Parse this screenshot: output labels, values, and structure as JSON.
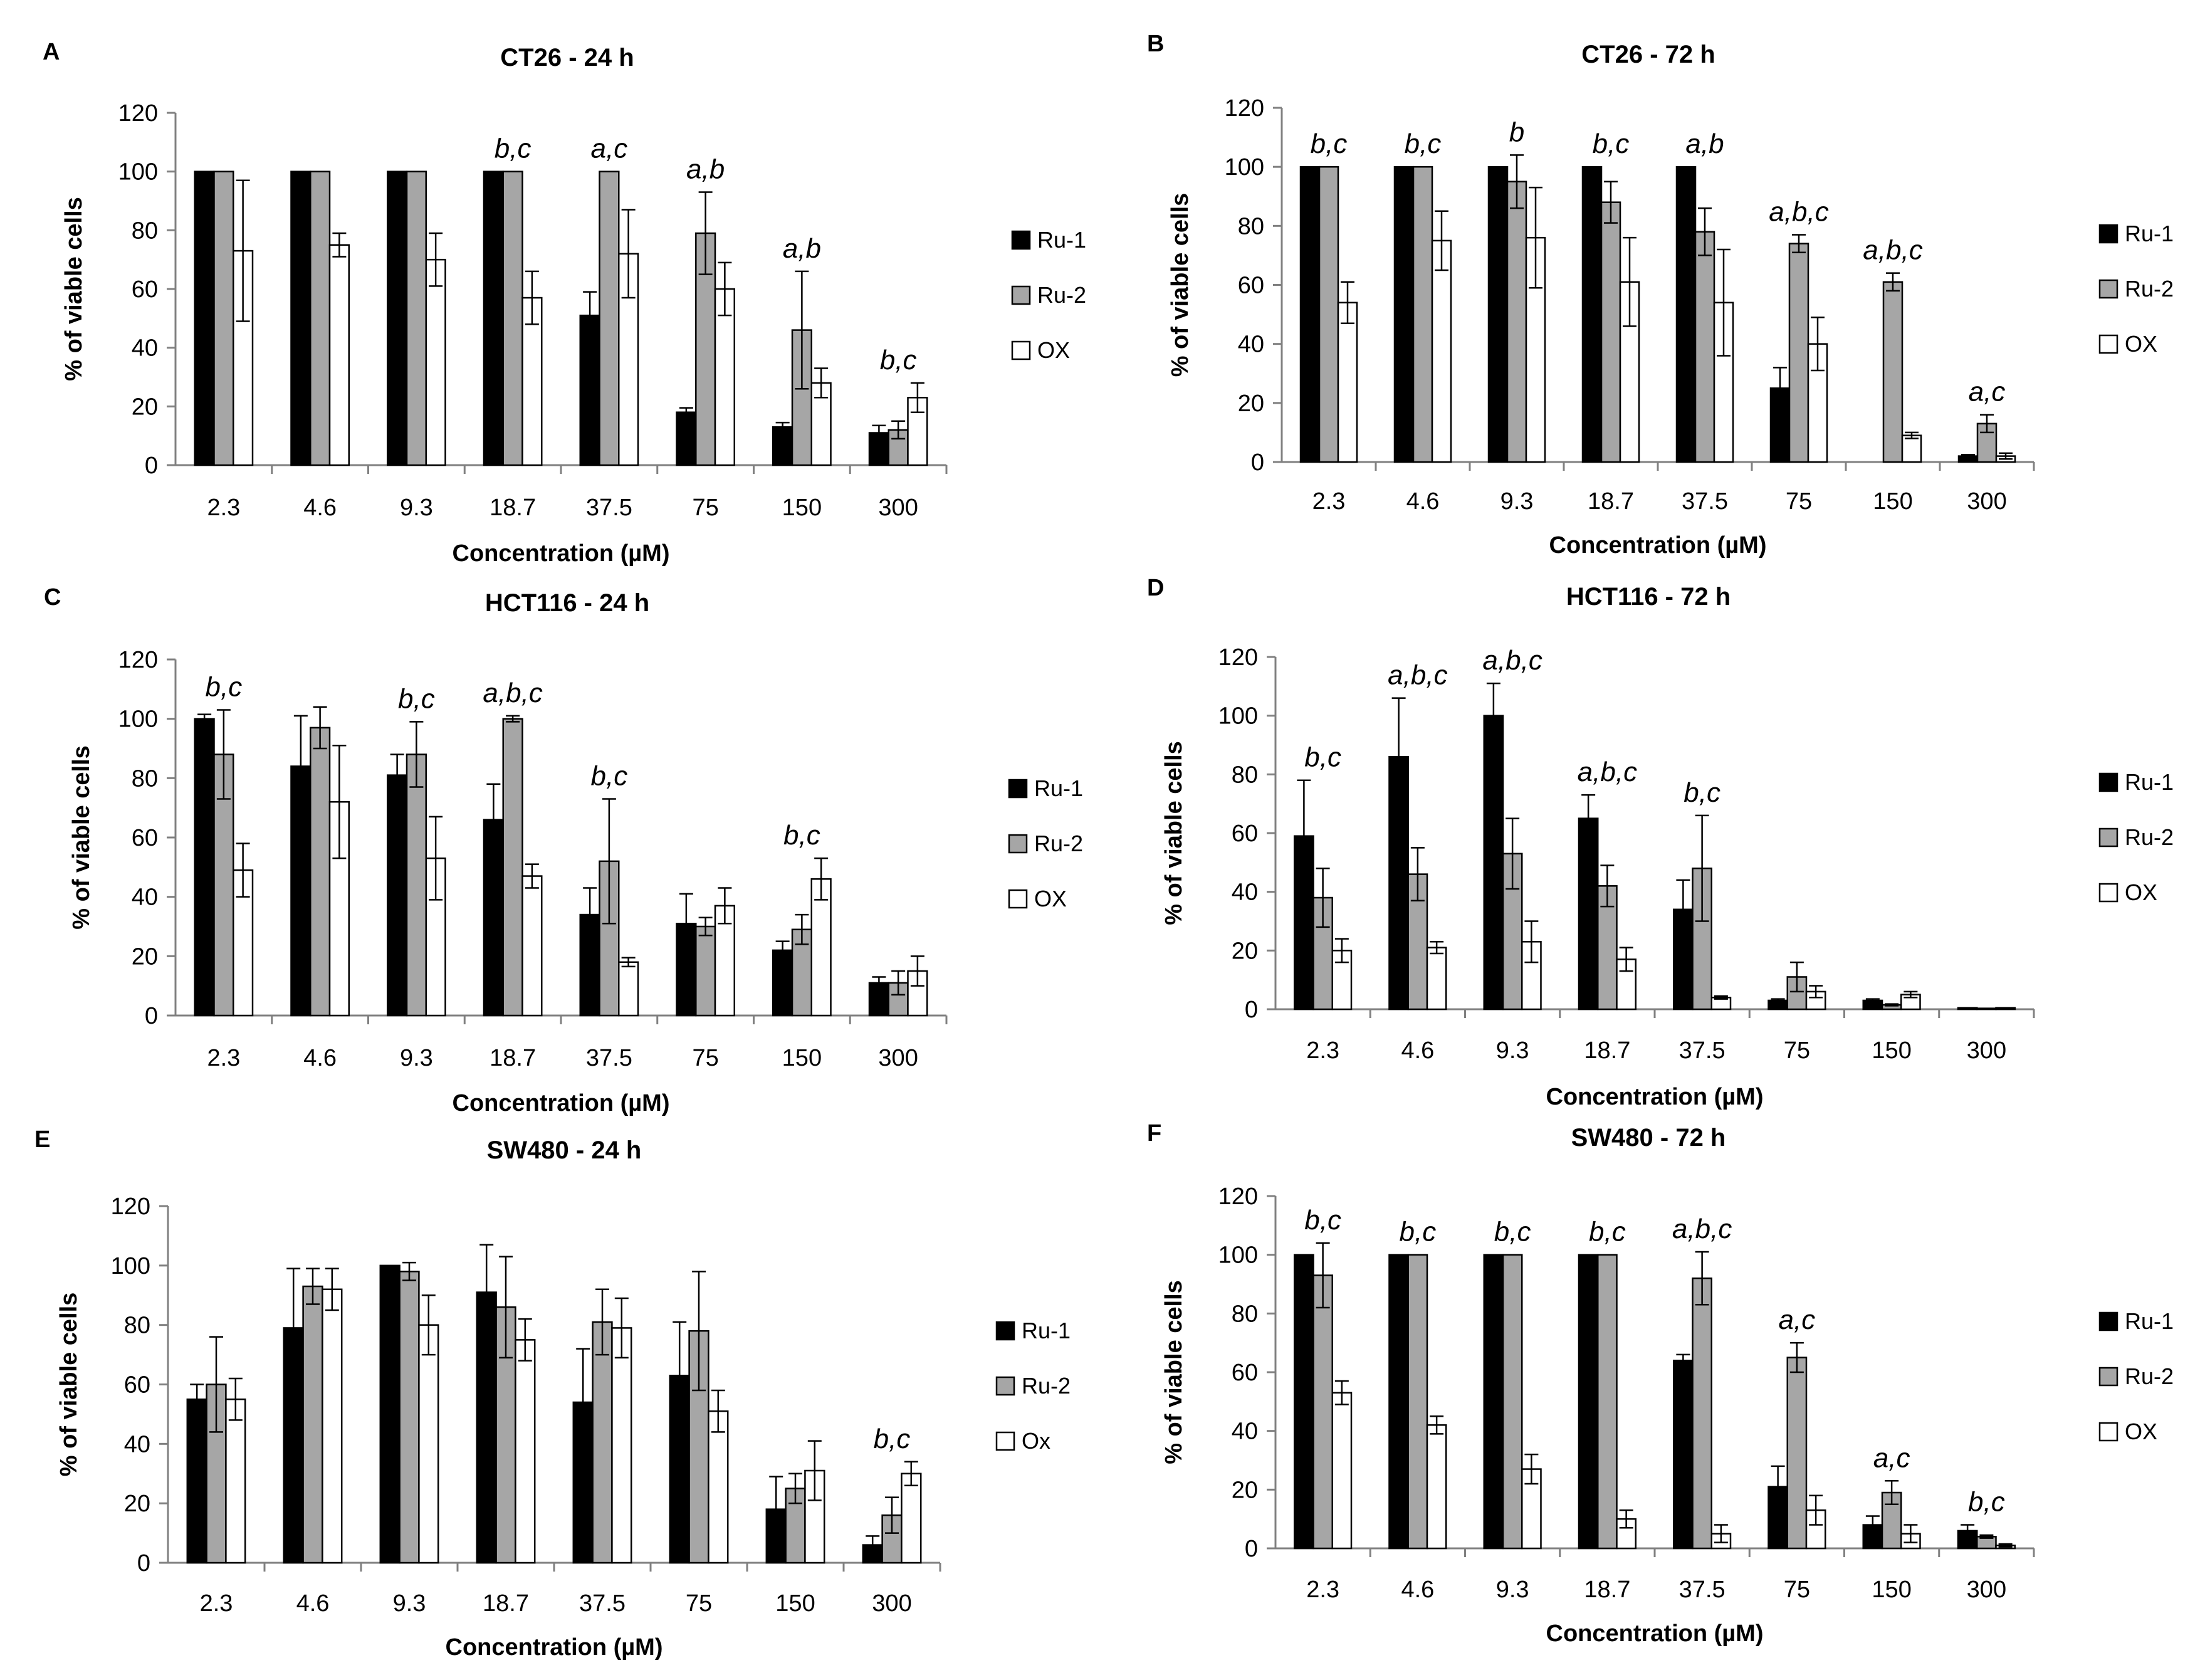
{
  "figure": {
    "series_styles": [
      {
        "name": "Ru-1",
        "fill": "#000000"
      },
      {
        "name": "Ru-2",
        "fill": "#a6a6a6"
      },
      {
        "name": "OX",
        "fill": "#ffffff"
      }
    ]
  },
  "chart_data": [
    {
      "type": "bar",
      "panel": "A",
      "title": "CT26 - 24 h",
      "xlabel": "Concentration (µM)",
      "ylabel": "% of viable cells",
      "ylim": [
        0,
        120
      ],
      "yticks": [
        0,
        20,
        40,
        60,
        80,
        100,
        120
      ],
      "categories": [
        "2.3",
        "4.6",
        "9.3",
        "18.7",
        "37.5",
        "75",
        "150",
        "300"
      ],
      "legend": [
        "Ru-1",
        "Ru-2",
        "OX"
      ],
      "series": [
        {
          "name": "Ru-1",
          "values": [
            100,
            100,
            100,
            100,
            51,
            18,
            13,
            11
          ],
          "errors": [
            0,
            0,
            0,
            0,
            8,
            1.5,
            1.5,
            2.5
          ]
        },
        {
          "name": "Ru-2",
          "values": [
            100,
            100,
            100,
            100,
            100,
            79,
            46,
            12
          ],
          "errors": [
            0,
            0,
            0,
            0,
            0,
            14,
            20,
            3
          ]
        },
        {
          "name": "OX",
          "values": [
            73,
            75,
            70,
            57,
            72,
            60,
            28,
            23
          ],
          "errors": [
            24,
            4,
            9,
            9,
            15,
            9,
            5,
            5
          ]
        }
      ],
      "annotations": [
        "",
        "",
        "",
        "b,c",
        "a,c",
        "a,b",
        "a,b",
        "b,c"
      ]
    },
    {
      "type": "bar",
      "panel": "B",
      "title": "CT26 - 72 h",
      "xlabel": "Concentration (µM)",
      "ylabel": "% of viable cells",
      "ylim": [
        0,
        120
      ],
      "yticks": [
        0,
        20,
        40,
        60,
        80,
        100,
        120
      ],
      "categories": [
        "2.3",
        "4.6",
        "9.3",
        "18.7",
        "37.5",
        "75",
        "150",
        "300"
      ],
      "legend": [
        "Ru-1",
        "Ru-2",
        "OX"
      ],
      "series": [
        {
          "name": "Ru-1",
          "values": [
            100,
            100,
            100,
            100,
            100,
            25,
            0,
            2
          ],
          "errors": [
            0,
            0,
            0,
            0,
            0,
            7,
            0,
            0.5
          ]
        },
        {
          "name": "Ru-2",
          "values": [
            100,
            100,
            95,
            88,
            78,
            74,
            61,
            13
          ],
          "errors": [
            0,
            0,
            9,
            7,
            8,
            3,
            3,
            3
          ]
        },
        {
          "name": "OX",
          "values": [
            54,
            75,
            76,
            61,
            54,
            40,
            9,
            2
          ],
          "errors": [
            7,
            10,
            17,
            15,
            18,
            9,
            1,
            1
          ]
        }
      ],
      "annotations": [
        "b,c",
        "b,c",
        "b",
        "b,c",
        "a,b",
        "a,b,c",
        "a,b,c",
        "a,c"
      ]
    },
    {
      "type": "bar",
      "panel": "C",
      "title": "HCT116 - 24 h",
      "xlabel": "Concentration (µM)",
      "ylabel": "% of viable cells",
      "ylim": [
        0,
        120
      ],
      "yticks": [
        0,
        20,
        40,
        60,
        80,
        100,
        120
      ],
      "categories": [
        "2.3",
        "4.6",
        "9.3",
        "18.7",
        "37.5",
        "75",
        "150",
        "300"
      ],
      "legend": [
        "Ru-1",
        "Ru-2",
        "OX"
      ],
      "series": [
        {
          "name": "Ru-1",
          "values": [
            100,
            84,
            81,
            66,
            34,
            31,
            22,
            11
          ],
          "errors": [
            1.5,
            17,
            7,
            12,
            9,
            10,
            3,
            2
          ]
        },
        {
          "name": "Ru-2",
          "values": [
            88,
            97,
            88,
            100,
            52,
            30,
            29,
            11
          ],
          "errors": [
            15,
            7,
            11,
            1,
            21,
            3,
            5,
            4
          ]
        },
        {
          "name": "OX",
          "values": [
            49,
            72,
            53,
            47,
            18,
            37,
            46,
            15
          ],
          "errors": [
            9,
            19,
            14,
            4,
            1.5,
            6,
            7,
            5
          ]
        }
      ],
      "annotations": [
        "b,c",
        "",
        "b,c",
        "a,b,c",
        "b,c",
        "",
        "b,c",
        ""
      ]
    },
    {
      "type": "bar",
      "panel": "D",
      "title": "HCT116 - 72 h",
      "xlabel": "Concentration (µM)",
      "ylabel": "% of viable cells",
      "ylim": [
        0,
        120
      ],
      "yticks": [
        0,
        20,
        40,
        60,
        80,
        100,
        120
      ],
      "categories": [
        "2.3",
        "4.6",
        "9.3",
        "18.7",
        "37.5",
        "75",
        "150",
        "300"
      ],
      "legend": [
        "Ru-1",
        "Ru-2",
        "OX"
      ],
      "series": [
        {
          "name": "Ru-1",
          "values": [
            59,
            86,
            100,
            65,
            34,
            3,
            3,
            0.5
          ],
          "errors": [
            19,
            20,
            11,
            8,
            10,
            0.5,
            0.5,
            0
          ]
        },
        {
          "name": "Ru-2",
          "values": [
            38,
            46,
            53,
            42,
            48,
            11,
            1.5,
            0.3
          ],
          "errors": [
            10,
            9,
            12,
            7,
            18,
            5,
            0.3,
            0
          ]
        },
        {
          "name": "OX",
          "values": [
            20,
            21,
            23,
            17,
            4,
            6,
            5,
            0.5
          ],
          "errors": [
            4,
            2,
            7,
            4,
            0.5,
            2,
            1,
            0
          ]
        }
      ],
      "annotations": [
        "b,c",
        "a,b,c",
        "a,b,c",
        "a,b,c",
        "b,c",
        "",
        "",
        ""
      ]
    },
    {
      "type": "bar",
      "panel": "E",
      "title": "SW480 - 24 h",
      "xlabel": "Concentration (µM)",
      "ylabel": "% of viable cells",
      "ylim": [
        0,
        120
      ],
      "yticks": [
        0,
        20,
        40,
        60,
        80,
        100,
        120
      ],
      "categories": [
        "2.3",
        "4.6",
        "9.3",
        "18.7",
        "37.5",
        "75",
        "150",
        "300"
      ],
      "legend": [
        "Ru-1",
        "Ru-2",
        "Ox"
      ],
      "series": [
        {
          "name": "Ru-1",
          "values": [
            55,
            79,
            100,
            91,
            54,
            63,
            18,
            6
          ],
          "errors": [
            5,
            20,
            0,
            16,
            18,
            18,
            11,
            3
          ]
        },
        {
          "name": "Ru-2",
          "values": [
            60,
            93,
            98,
            86,
            81,
            78,
            25,
            16
          ],
          "errors": [
            16,
            6,
            3,
            17,
            11,
            20,
            5,
            6
          ]
        },
        {
          "name": "Ox",
          "values": [
            55,
            92,
            80,
            75,
            79,
            51,
            31,
            30
          ],
          "errors": [
            7,
            7,
            10,
            7,
            10,
            7,
            10,
            4
          ]
        }
      ],
      "annotations": [
        "",
        "",
        "",
        "",
        "",
        "",
        "",
        "b,c"
      ]
    },
    {
      "type": "bar",
      "panel": "F",
      "title": "SW480 - 72 h",
      "xlabel": "Concentration (µM)",
      "ylabel": "% of viable cells",
      "ylim": [
        0,
        120
      ],
      "yticks": [
        0,
        20,
        40,
        60,
        80,
        100,
        120
      ],
      "categories": [
        "2.3",
        "4.6",
        "9.3",
        "18.7",
        "37.5",
        "75",
        "150",
        "300"
      ],
      "legend": [
        "Ru-1",
        "Ru-2",
        "OX"
      ],
      "series": [
        {
          "name": "Ru-1",
          "values": [
            100,
            100,
            100,
            100,
            64,
            21,
            8,
            6
          ],
          "errors": [
            0,
            0,
            0,
            0,
            2,
            7,
            3,
            2
          ]
        },
        {
          "name": "Ru-2",
          "values": [
            93,
            100,
            100,
            100,
            92,
            65,
            19,
            4
          ],
          "errors": [
            11,
            0,
            0,
            0,
            9,
            5,
            4,
            0.5
          ]
        },
        {
          "name": "OX",
          "values": [
            53,
            42,
            27,
            10,
            5,
            13,
            5,
            1
          ],
          "errors": [
            4,
            3,
            5,
            3,
            3,
            5,
            3,
            0.5
          ]
        }
      ],
      "annotations": [
        "b,c",
        "b,c",
        "b,c",
        "b,c",
        "a,b,c",
        "a,c",
        "a,c",
        "b,c"
      ]
    }
  ]
}
